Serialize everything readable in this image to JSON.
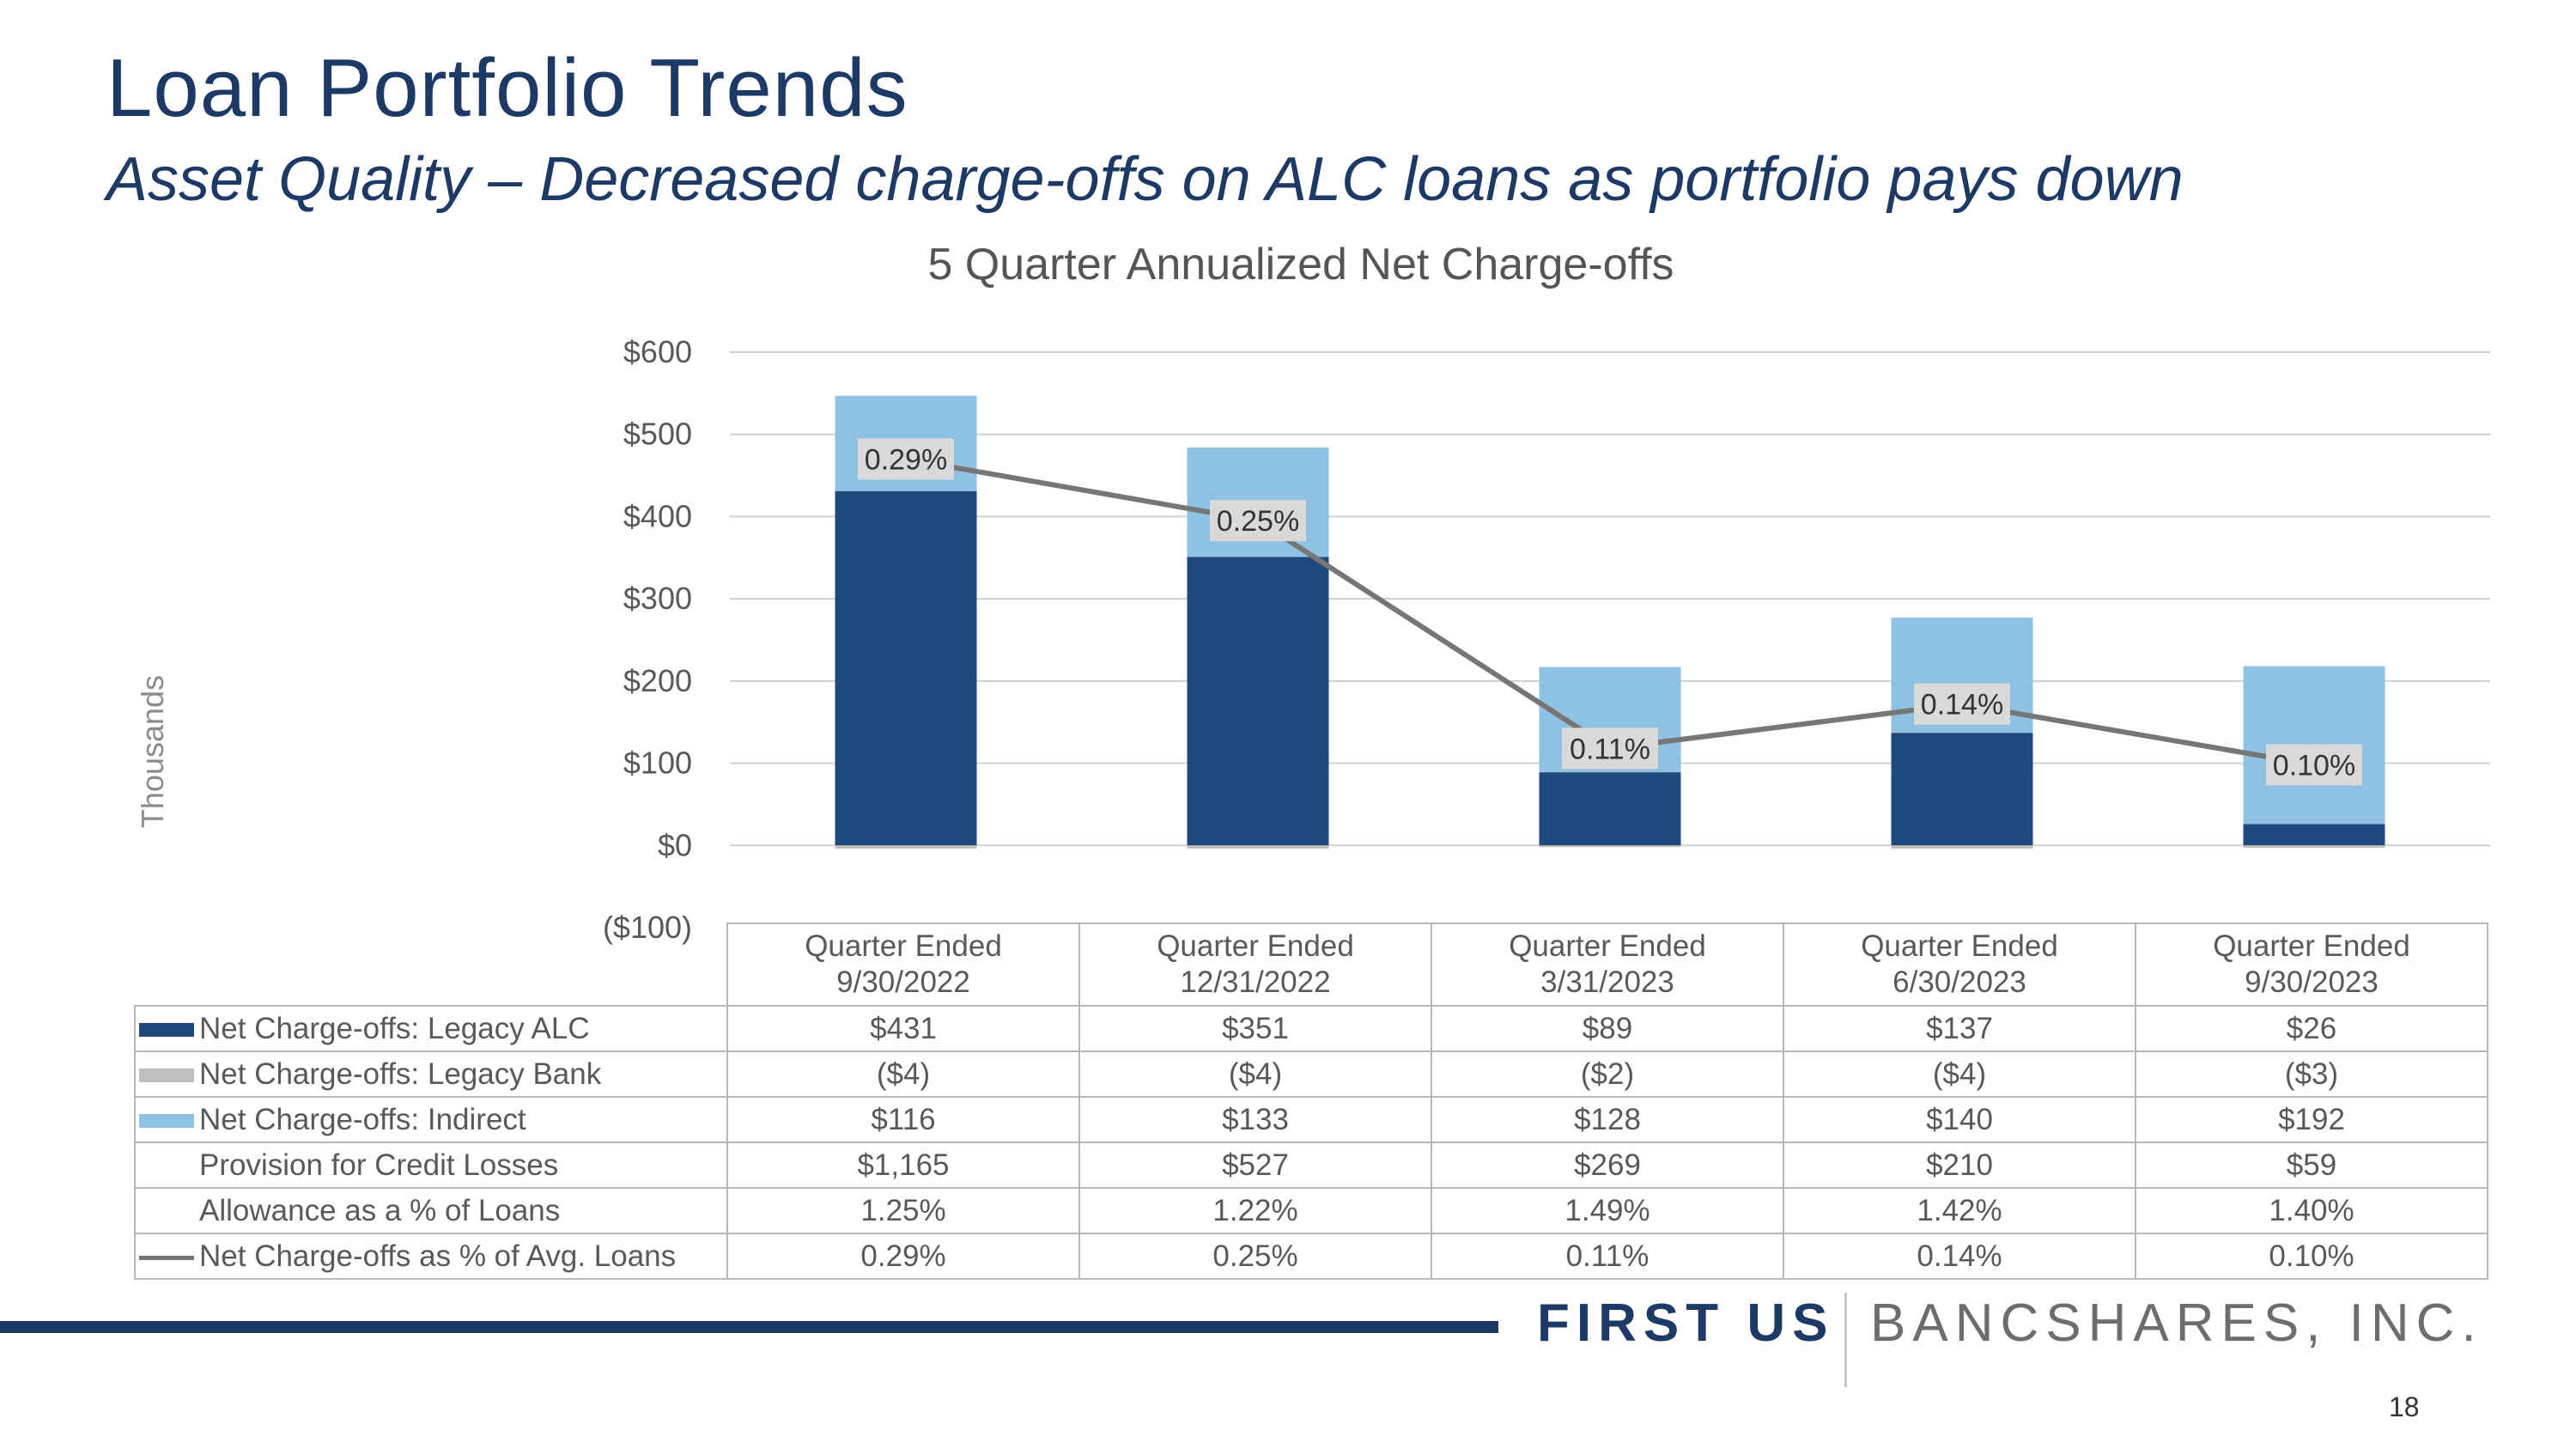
{
  "slide": {
    "title": "Loan Portfolio Trends",
    "subtitle": "Asset Quality – Decreased charge-offs on ALC loans as portfolio pays down",
    "page_number": "18"
  },
  "brand": {
    "first": "FIRST US",
    "rest": "BANCSHARES, INC.",
    "color": "#1d3a66"
  },
  "chart_data": {
    "type": "bar",
    "stacked": true,
    "title": "5 Quarter Annualized Net Charge-offs",
    "ylabel": "Thousands",
    "ylim": [
      -100,
      600
    ],
    "yticks": [
      600,
      500,
      400,
      300,
      200,
      100,
      0,
      -100
    ],
    "ytick_labels": [
      "$600",
      "$500",
      "$400",
      "$300",
      "$200",
      "$100",
      "$0",
      "($100)"
    ],
    "grid": true,
    "categories": [
      "Quarter Ended\n9/30/2022",
      "Quarter Ended\n12/31/2022",
      "Quarter Ended\n3/31/2023",
      "Quarter Ended\n6/30/2023",
      "Quarter Ended\n9/30/2023"
    ],
    "category_labels": [
      {
        "line1": "Quarter Ended",
        "line2": "9/30/2022"
      },
      {
        "line1": "Quarter Ended",
        "line2": "12/31/2022"
      },
      {
        "line1": "Quarter Ended",
        "line2": "3/31/2023"
      },
      {
        "line1": "Quarter Ended",
        "line2": "6/30/2023"
      },
      {
        "line1": "Quarter Ended",
        "line2": "9/30/2023"
      }
    ],
    "series": [
      {
        "name": "Net Charge-offs: Legacy ALC",
        "kind": "bar",
        "color": "#1f497d",
        "values": [
          431,
          351,
          89,
          137,
          26
        ]
      },
      {
        "name": "Net Charge-offs: Legacy Bank",
        "kind": "bar",
        "color": "#bfbfbf",
        "values": [
          -4,
          -4,
          -2,
          -4,
          -3
        ]
      },
      {
        "name": "Net Charge-offs: Indirect",
        "kind": "bar",
        "color": "#8fc1e3",
        "values": [
          116,
          133,
          128,
          140,
          192
        ]
      },
      {
        "name": "Net Charge-offs as % of Avg. Loans",
        "kind": "line",
        "color": "#767676",
        "values_pct": [
          0.29,
          0.25,
          0.11,
          0.14,
          0.1
        ],
        "plot_values": [
          470,
          395,
          118,
          172,
          98
        ]
      }
    ],
    "line_labels": [
      "0.29%",
      "0.25%",
      "0.11%",
      "0.14%",
      "0.10%"
    ]
  },
  "table": {
    "rows": [
      {
        "label": "Net Charge-offs: Legacy ALC",
        "swatch": "box",
        "color": "#1f497d",
        "cells": [
          "$431",
          "$351",
          "$89",
          "$137",
          "$26"
        ]
      },
      {
        "label": "Net Charge-offs: Legacy Bank",
        "swatch": "box",
        "color": "#bfbfbf",
        "cells": [
          "($4)",
          "($4)",
          "($2)",
          "($4)",
          "($3)"
        ]
      },
      {
        "label": "Net Charge-offs: Indirect",
        "swatch": "box",
        "color": "#8fc1e3",
        "cells": [
          "$116",
          "$133",
          "$128",
          "$140",
          "$192"
        ]
      },
      {
        "label": "Provision for Credit Losses",
        "swatch": "none",
        "color": "",
        "cells": [
          "$1,165",
          "$527",
          "$269",
          "$210",
          "$59"
        ]
      },
      {
        "label": "Allowance as a % of Loans",
        "swatch": "none",
        "color": "",
        "cells": [
          "1.25%",
          "1.22%",
          "1.49%",
          "1.42%",
          "1.40%"
        ]
      },
      {
        "label": "Net Charge-offs as % of Avg. Loans",
        "swatch": "line",
        "color": "#767676",
        "cells": [
          "0.29%",
          "0.25%",
          "0.11%",
          "0.14%",
          "0.10%"
        ]
      }
    ]
  }
}
